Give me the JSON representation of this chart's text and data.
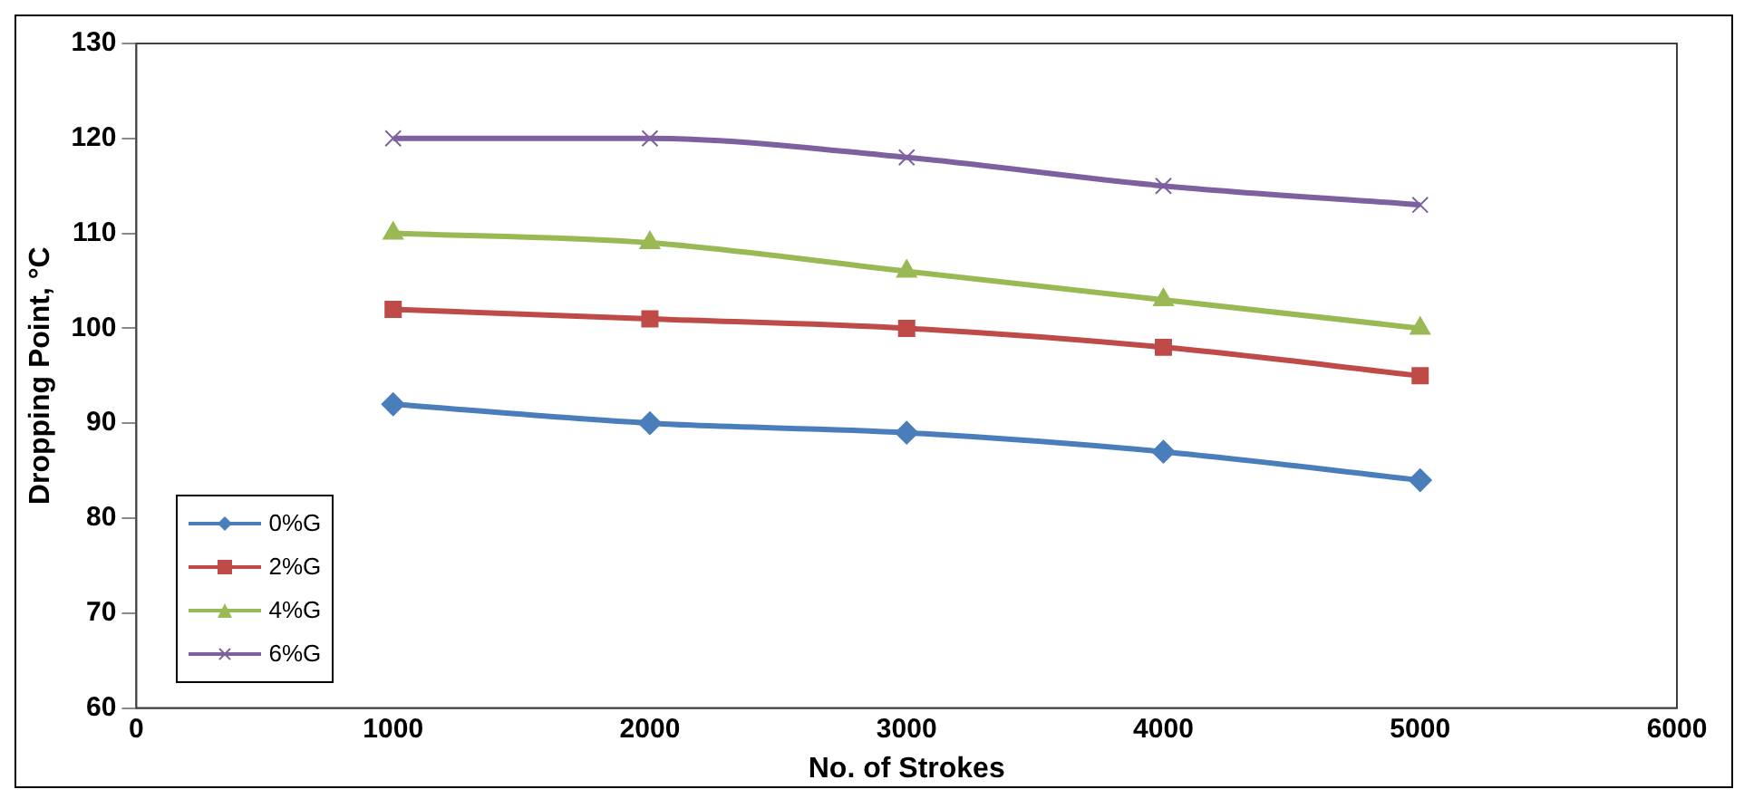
{
  "chart_data": {
    "type": "line",
    "xlabel": "No. of Strokes",
    "ylabel": "Dropping Point, °C",
    "x": [
      1000,
      2000,
      3000,
      4000,
      5000
    ],
    "series": [
      {
        "name": "0%G",
        "color": "#4a7ebb",
        "marker": "diamond",
        "values": [
          92,
          90,
          89,
          87,
          84
        ]
      },
      {
        "name": "2%G",
        "color": "#be4b48",
        "marker": "square",
        "values": [
          102,
          101,
          100,
          98,
          95
        ]
      },
      {
        "name": "4%G",
        "color": "#98b954",
        "marker": "triangle",
        "values": [
          110,
          109,
          106,
          103,
          100
        ]
      },
      {
        "name": "6%G",
        "color": "#7d60a0",
        "marker": "cross",
        "values": [
          120,
          120,
          118,
          115,
          113
        ]
      }
    ],
    "xlim": [
      0,
      6000
    ],
    "xticks": [
      0,
      1000,
      2000,
      3000,
      4000,
      5000,
      6000
    ],
    "ylim": [
      60,
      130
    ],
    "yticks": [
      60,
      70,
      80,
      90,
      100,
      110,
      120,
      130
    ],
    "grid": false,
    "legend": "bottom left"
  }
}
